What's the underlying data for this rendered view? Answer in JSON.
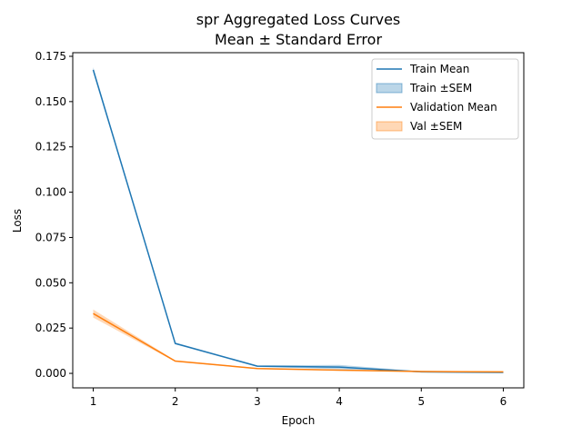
{
  "chart_data": {
    "type": "line",
    "title": "spr Aggregated Loss Curves",
    "subtitle": "Mean ± Standard Error",
    "xlabel": "Epoch",
    "ylabel": "Loss",
    "x": [
      1,
      2,
      3,
      4,
      5,
      6
    ],
    "xlim": [
      0.75,
      6.25
    ],
    "ylim": [
      -0.008,
      0.177
    ],
    "xticks": [
      1,
      2,
      3,
      4,
      5,
      6
    ],
    "yticks": [
      0.0,
      0.025,
      0.05,
      0.075,
      0.1,
      0.125,
      0.15,
      0.175
    ],
    "ytick_labels": [
      "0.000",
      "0.025",
      "0.050",
      "0.075",
      "0.100",
      "0.125",
      "0.150",
      "0.175"
    ],
    "grid": false,
    "legend_position": "upper right",
    "series": [
      {
        "name": "Train Mean",
        "band_name": "Train ±SEM",
        "values": [
          0.1675,
          0.0165,
          0.004,
          0.0035,
          0.0008,
          0.0005
        ],
        "sem": [
          0.0015,
          0.0005,
          0.0004,
          0.0012,
          0.0003,
          0.0002
        ],
        "color": "#1f77b4"
      },
      {
        "name": "Validation Mean",
        "band_name": "Val ±SEM",
        "values": [
          0.033,
          0.0068,
          0.0027,
          0.0018,
          0.001,
          0.0008
        ],
        "sem": [
          0.0022,
          0.0004,
          0.0003,
          0.0003,
          0.0002,
          0.0002
        ],
        "color": "#ff7f0e"
      }
    ]
  }
}
